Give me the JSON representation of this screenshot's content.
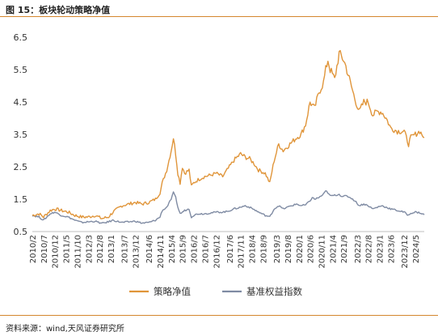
{
  "header": {
    "title": "图 15：板块轮动策略净值"
  },
  "footer": {
    "source": "资料来源：wind,天风证券研究所"
  },
  "colors": {
    "strategy": "#e0953a",
    "benchmark": "#7f8ba3",
    "rule": "#d4862e",
    "axis": "#bfbfbf"
  },
  "chart_data": {
    "type": "line",
    "title": "",
    "xlabel": "",
    "ylabel": "",
    "ylim": [
      0.5,
      6.5
    ],
    "yticks": [
      0.5,
      1.5,
      2.5,
      3.5,
      4.5,
      5.5,
      6.5
    ],
    "xlim": [
      "2010-02",
      "2024-09"
    ],
    "xticks": [
      "2010/2",
      "2010/7",
      "2010/12",
      "2011/5",
      "2011/10",
      "2012/3",
      "2012/8",
      "2013/1",
      "2013/7",
      "2013/12",
      "2014/6",
      "2014/11",
      "2015/4",
      "2015/9",
      "2016/2",
      "2016/7",
      "2016/12",
      "2017/6",
      "2017/11",
      "2018/4",
      "2018/9",
      "2019/3",
      "2019/8",
      "2020/1",
      "2020/6",
      "2020/11",
      "2021/4",
      "2021/9",
      "2022/3",
      "2022/8",
      "2023/1",
      "2023/6",
      "2023/12",
      "2024/5"
    ],
    "grid": false,
    "legend": "bottom-center",
    "series": [
      {
        "name": "策略净值",
        "x": [
          "2010-02",
          "2010-05",
          "2010-07",
          "2010-10",
          "2010-12",
          "2011-03",
          "2011-06",
          "2011-09",
          "2011-12",
          "2012-03",
          "2012-06",
          "2012-09",
          "2012-12",
          "2013-02",
          "2013-06",
          "2013-09",
          "2013-12",
          "2014-03",
          "2014-06",
          "2014-09",
          "2014-11",
          "2014-12",
          "2015-02",
          "2015-04",
          "2015-05",
          "2015-06",
          "2015-07",
          "2015-08",
          "2015-09",
          "2015-10",
          "2015-12",
          "2016-01",
          "2016-02",
          "2016-04",
          "2016-07",
          "2016-10",
          "2016-12",
          "2017-03",
          "2017-05",
          "2017-08",
          "2017-11",
          "2018-01",
          "2018-03",
          "2018-05",
          "2018-07",
          "2018-10",
          "2018-12",
          "2019-02",
          "2019-04",
          "2019-06",
          "2019-09",
          "2019-12",
          "2020-02",
          "2020-04",
          "2020-06",
          "2020-07",
          "2020-08",
          "2020-10",
          "2020-12",
          "2021-01",
          "2021-02",
          "2021-03",
          "2021-05",
          "2021-07",
          "2021-08",
          "2021-09",
          "2021-10",
          "2021-12",
          "2022-02",
          "2022-04",
          "2022-06",
          "2022-08",
          "2022-10",
          "2022-12",
          "2023-02",
          "2023-04",
          "2023-06",
          "2023-09",
          "2023-12",
          "2024-02",
          "2024-03",
          "2024-05",
          "2024-07",
          "2024-09"
        ],
        "values": [
          1.0,
          1.05,
          0.95,
          1.15,
          1.2,
          1.15,
          1.1,
          1.0,
          0.95,
          0.95,
          1.0,
          0.9,
          0.95,
          1.1,
          1.3,
          1.35,
          1.4,
          1.35,
          1.4,
          1.5,
          1.7,
          2.0,
          2.4,
          3.0,
          3.4,
          2.9,
          2.3,
          2.0,
          2.5,
          2.3,
          2.4,
          1.9,
          2.0,
          2.1,
          2.2,
          2.25,
          2.3,
          2.2,
          2.4,
          2.7,
          2.9,
          2.8,
          2.75,
          2.6,
          2.4,
          2.3,
          2.0,
          2.7,
          3.2,
          3.0,
          3.2,
          3.4,
          3.5,
          3.8,
          4.5,
          4.4,
          4.3,
          4.8,
          5.1,
          5.5,
          5.8,
          5.5,
          5.2,
          6.0,
          5.9,
          5.8,
          5.6,
          5.1,
          4.6,
          4.2,
          4.5,
          4.5,
          4.1,
          4.2,
          4.2,
          4.0,
          3.7,
          3.6,
          3.6,
          3.2,
          3.4,
          3.5,
          3.6,
          3.4
        ]
      },
      {
        "name": "基准权益指数",
        "x": [
          "2010-02",
          "2010-05",
          "2010-07",
          "2010-10",
          "2010-12",
          "2011-03",
          "2011-06",
          "2011-09",
          "2011-12",
          "2012-03",
          "2012-06",
          "2012-09",
          "2012-12",
          "2013-02",
          "2013-06",
          "2013-09",
          "2013-12",
          "2014-03",
          "2014-06",
          "2014-09",
          "2014-11",
          "2014-12",
          "2015-02",
          "2015-04",
          "2015-05",
          "2015-06",
          "2015-07",
          "2015-08",
          "2015-09",
          "2015-10",
          "2015-12",
          "2016-01",
          "2016-02",
          "2016-04",
          "2016-07",
          "2016-10",
          "2016-12",
          "2017-03",
          "2017-05",
          "2017-08",
          "2017-11",
          "2018-01",
          "2018-03",
          "2018-05",
          "2018-07",
          "2018-10",
          "2018-12",
          "2019-02",
          "2019-04",
          "2019-06",
          "2019-09",
          "2019-12",
          "2020-02",
          "2020-04",
          "2020-06",
          "2020-07",
          "2020-08",
          "2020-10",
          "2020-12",
          "2021-01",
          "2021-02",
          "2021-03",
          "2021-05",
          "2021-07",
          "2021-08",
          "2021-09",
          "2021-10",
          "2021-12",
          "2022-02",
          "2022-04",
          "2022-06",
          "2022-08",
          "2022-10",
          "2022-12",
          "2023-02",
          "2023-04",
          "2023-06",
          "2023-09",
          "2023-12",
          "2024-02",
          "2024-03",
          "2024-05",
          "2024-07",
          "2024-09"
        ],
        "values": [
          1.0,
          0.95,
          0.85,
          1.05,
          1.1,
          1.0,
          0.95,
          0.85,
          0.78,
          0.8,
          0.82,
          0.75,
          0.8,
          0.85,
          0.78,
          0.8,
          0.82,
          0.76,
          0.78,
          0.85,
          0.95,
          1.15,
          1.25,
          1.5,
          1.7,
          1.55,
          1.25,
          1.05,
          1.1,
          1.15,
          1.2,
          0.95,
          1.0,
          1.05,
          1.05,
          1.08,
          1.1,
          1.1,
          1.12,
          1.2,
          1.25,
          1.3,
          1.25,
          1.18,
          1.1,
          1.0,
          0.95,
          1.2,
          1.3,
          1.2,
          1.28,
          1.35,
          1.3,
          1.32,
          1.45,
          1.55,
          1.5,
          1.55,
          1.65,
          1.75,
          1.7,
          1.6,
          1.62,
          1.65,
          1.6,
          1.58,
          1.6,
          1.55,
          1.45,
          1.3,
          1.35,
          1.3,
          1.2,
          1.25,
          1.3,
          1.25,
          1.2,
          1.15,
          1.1,
          1.0,
          1.07,
          1.1,
          1.08,
          1.02
        ]
      }
    ]
  }
}
